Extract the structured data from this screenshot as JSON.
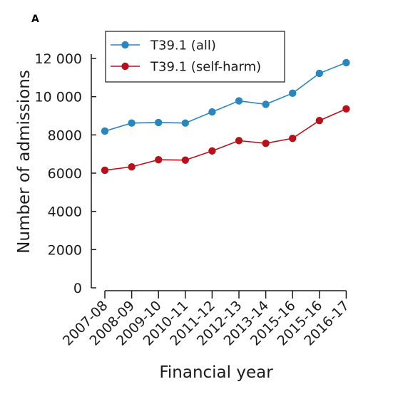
{
  "panel_label": "A",
  "chart_data": {
    "type": "line",
    "title": "",
    "xlabel": "Financial year",
    "ylabel": "Number of admissions",
    "categories": [
      "2007-08",
      "2008-09",
      "2009-10",
      "2010-11",
      "2011-12",
      "2012-13",
      "2013-14",
      "2015-16",
      "2015-16",
      "2016-17"
    ],
    "ylim": [
      0,
      12000
    ],
    "yticks": [
      0,
      2000,
      4000,
      6000,
      8000,
      10000,
      12000
    ],
    "ytick_labels": [
      "0",
      "2000",
      "4000",
      "6000",
      "8000",
      "10 000",
      "12 000"
    ],
    "grid": false,
    "legend_position": "top-left",
    "series": [
      {
        "name": "T39.1 (all)",
        "color": "#2a86bd",
        "values": [
          8200,
          8620,
          8650,
          8620,
          9200,
          9780,
          9600,
          10180,
          11220,
          11780
        ]
      },
      {
        "name": "T39.1 (self-harm)",
        "color": "#b5121b",
        "values": [
          6150,
          6330,
          6700,
          6680,
          7160,
          7700,
          7560,
          7820,
          8750,
          9360
        ]
      }
    ]
  }
}
